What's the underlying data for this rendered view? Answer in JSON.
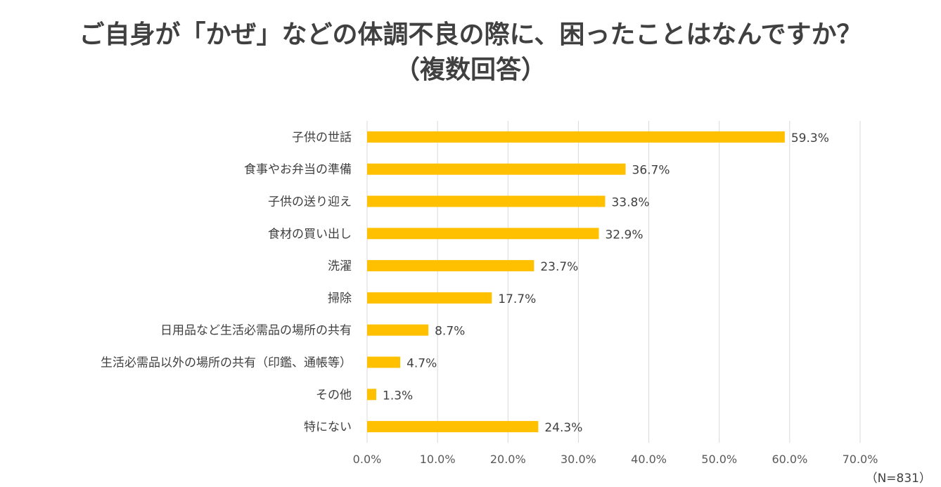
{
  "title_line1": "ご自身が「かぜ」などの体調不良の際に、困ったことはなんですか？",
  "title_line2": "（複数回答）",
  "note": "（N=831）",
  "colors": {
    "bar": "#FFC000",
    "grid": "#D9D9D9",
    "text": "#404040"
  },
  "chart_data": {
    "type": "bar",
    "orientation": "horizontal",
    "title": "ご自身が「かぜ」などの体調不良の際に、困ったことはなんですか？（複数回答）",
    "categories": [
      "子供の世話",
      "食事やお弁当の準備",
      "子供の送り迎え",
      "食材の買い出し",
      "洗濯",
      "掃除",
      "日用品など生活必需品の場所の共有",
      "生活必需品以外の場所の共有（印鑑、通帳等）",
      "その他",
      "特にない"
    ],
    "values": [
      59.3,
      36.7,
      33.8,
      32.9,
      23.7,
      17.7,
      8.7,
      4.7,
      1.3,
      24.3
    ],
    "value_labels": [
      "59.3%",
      "36.7%",
      "33.8%",
      "32.9%",
      "23.7%",
      "17.7%",
      "8.7%",
      "4.7%",
      "1.3%",
      "24.3%"
    ],
    "xlim": [
      0,
      70
    ],
    "xticks": [
      0,
      10,
      20,
      30,
      40,
      50,
      60,
      70
    ],
    "xtick_labels": [
      "0.0%",
      "10.0%",
      "20.0%",
      "30.0%",
      "40.0%",
      "50.0%",
      "60.0%",
      "70.0%"
    ],
    "grid": true,
    "legend": "none"
  }
}
